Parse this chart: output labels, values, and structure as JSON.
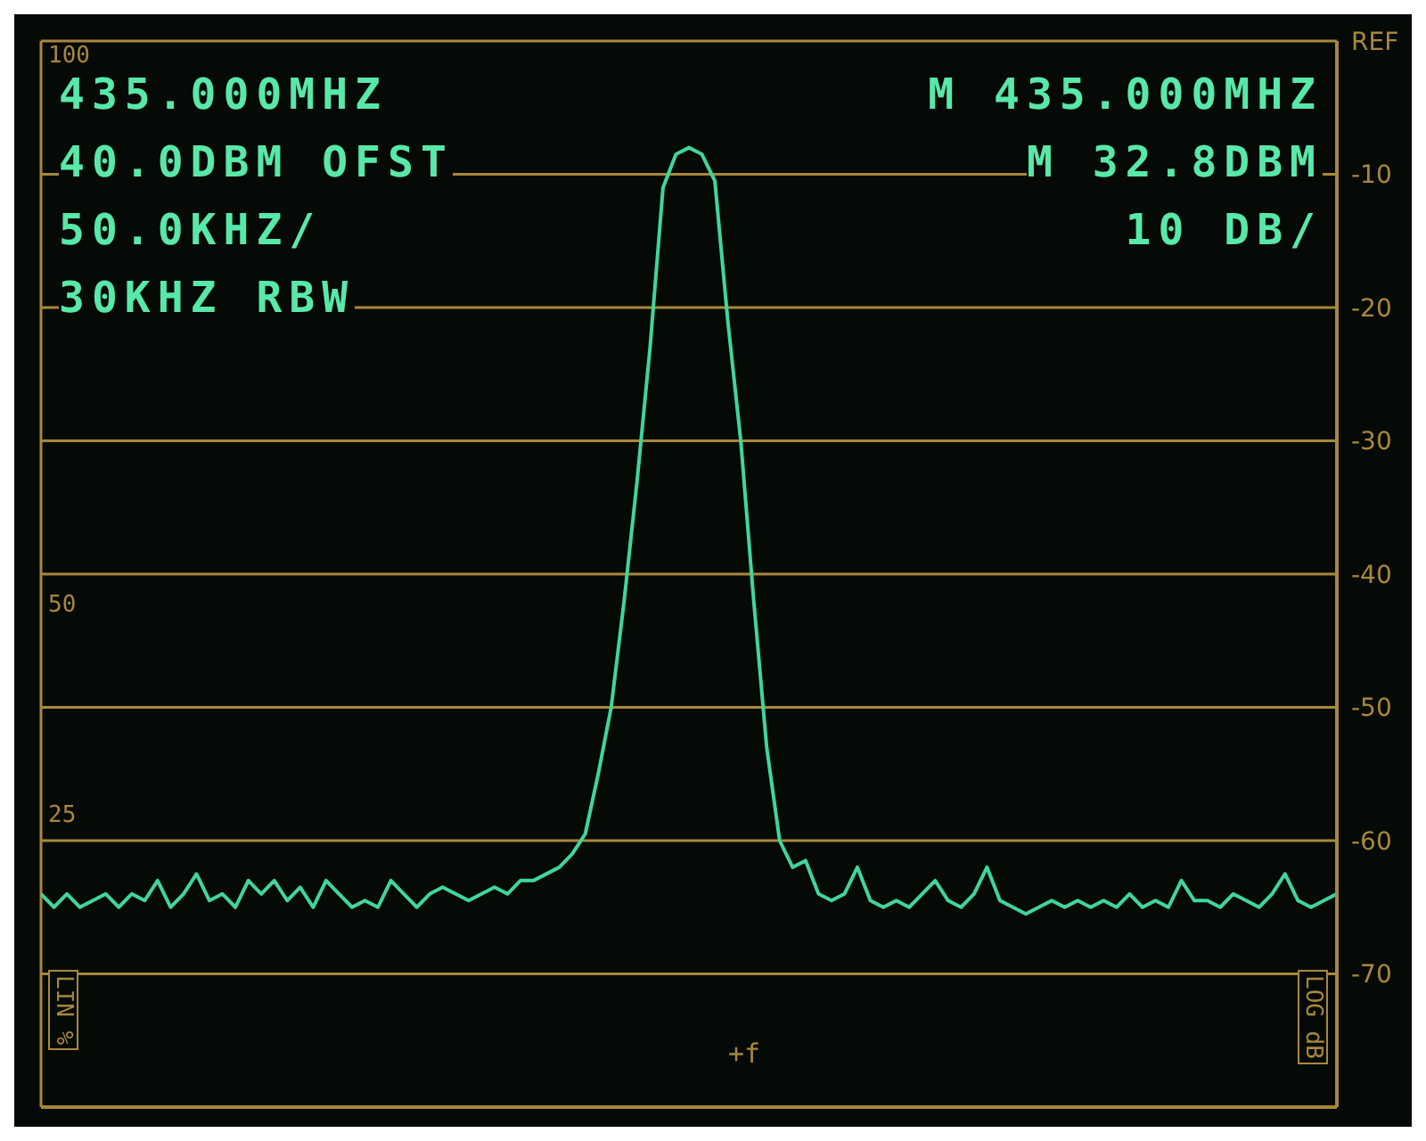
{
  "chart_data": {
    "type": "line",
    "categories": [
      null,
      null,
      null,
      null,
      null,
      null,
      null,
      null,
      null,
      null,
      null,
      null,
      null,
      null,
      null,
      null,
      null,
      null,
      null,
      null,
      null,
      null,
      null,
      null,
      null,
      null,
      null,
      null,
      null,
      null,
      null,
      null,
      null,
      null,
      null,
      null,
      null,
      null,
      null,
      null,
      null,
      null,
      null,
      null,
      null,
      null,
      null,
      null,
      null,
      null,
      null,
      null,
      null,
      null,
      null,
      null,
      null,
      null,
      null,
      null,
      null,
      null,
      null,
      null,
      null,
      null,
      null,
      null,
      null,
      null,
      null,
      null,
      null,
      null,
      null,
      null,
      null,
      null,
      null,
      null,
      null,
      null,
      null,
      null,
      null,
      null,
      null,
      null,
      null,
      null,
      null,
      null,
      null,
      null,
      null,
      null,
      null,
      null,
      null,
      null,
      null
    ],
    "series": [
      {
        "color": "#3fd69c",
        "values": [
          -64,
          -65,
          -64,
          -65,
          -64.5,
          -64,
          -65,
          -64,
          -64.5,
          -63,
          -65,
          -64,
          -62.5,
          -64.5,
          -64,
          -65,
          -63,
          -64,
          -63,
          -64.5,
          -63.5,
          -65,
          -63,
          -64,
          -65,
          -64.5,
          -65,
          -63,
          -64,
          -65,
          -64,
          -63.5,
          -64,
          -64.5,
          -64,
          -63.5,
          -64,
          -63,
          -63,
          -62.5,
          -62,
          -61,
          -59.5,
          -55,
          -50,
          -42,
          -33,
          -23,
          -11,
          -8.5,
          -8,
          -8.5,
          -10.5,
          -21,
          -30,
          -42,
          -53,
          -60,
          -62,
          -61.5,
          -64,
          -64.5,
          -64,
          -62,
          -64.5,
          -65,
          -64.5,
          -65,
          -64,
          -63,
          -64.5,
          -65,
          -64,
          -62,
          -64.5,
          -65,
          -65.5,
          -65,
          -64.5,
          -65,
          -64.5,
          -65,
          -64.5,
          -65,
          -64,
          -65,
          -64.5,
          -65,
          -63,
          -64.5,
          -64.5,
          -65,
          -64,
          -64.5,
          -65,
          -64,
          -62.5,
          -64.5,
          -65,
          -64.5,
          -64
        ]
      }
    ],
    "ylim": [
      -80,
      0
    ],
    "yticks": [
      {
        "value": 0,
        "label": "REF"
      },
      -10,
      -20,
      -30,
      -40,
      -50,
      -60,
      -70,
      {
        "value": -80,
        "label": null
      }
    ],
    "grid": true,
    "tick_labels": "y",
    "annotations": [
      "435.000MHZ",
      "40.0DBM OFST",
      "50.0KHZ/",
      "30KHZ RBW",
      "M 435.000MHZ",
      "M 32.8DBM",
      "10 DB/",
      "100",
      "50",
      "25",
      "LIN %",
      "LOG dB",
      "+f"
    ]
  }
}
